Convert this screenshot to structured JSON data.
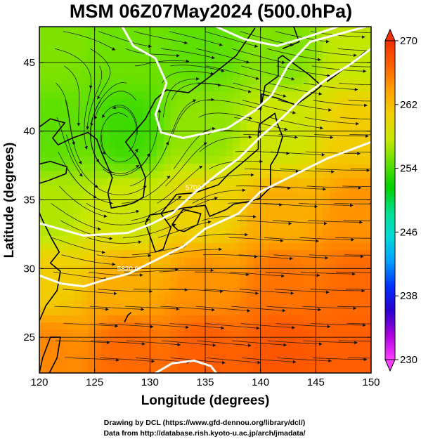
{
  "figure": {
    "title": "MSM 06Z07May2024 (500.0hPa)",
    "credit_line1": "Drawing by DCL (https://www.gfd-dennou.org/library/dcl/)",
    "credit_line2": "Data from http://database.rish.kyoto-u.ac.jp/arch/jmadata/"
  },
  "chart_data": {
    "type": "heatmap",
    "title": "MSM 06Z07May2024 (500.0hPa)",
    "xlabel": "Longitude (degrees)",
    "ylabel": "Latitude  (degrees)",
    "xlim": [
      120,
      150
    ],
    "ylim": [
      22.4,
      47.6
    ],
    "x_ticks": [
      120,
      125,
      130,
      135,
      140,
      145,
      150
    ],
    "y_ticks": [
      25,
      30,
      35,
      40,
      45
    ],
    "grid": true,
    "colorbar": {
      "min": 230,
      "max": 270,
      "ticks": [
        270,
        262,
        254,
        246,
        238,
        230
      ],
      "colors": [
        "#ff40ff",
        "#aa00dd",
        "#2a00cc",
        "#0030ff",
        "#00a0ff",
        "#00d8d8",
        "#00e090",
        "#00d000",
        "#60e000",
        "#c8e800",
        "#f0d000",
        "#ffa000",
        "#ff6000",
        "#f03000"
      ],
      "triangles": "both"
    },
    "field_points": [
      {
        "lon": 121,
        "lat": 46,
        "value": 255.5
      },
      {
        "lon": 128,
        "lat": 46,
        "value": 255
      },
      {
        "lon": 135,
        "lat": 46,
        "value": 254.5
      },
      {
        "lon": 142,
        "lat": 46,
        "value": 255.5
      },
      {
        "lon": 149,
        "lat": 46,
        "value": 257.5
      },
      {
        "lon": 121,
        "lat": 40,
        "value": 254.5
      },
      {
        "lon": 128,
        "lat": 40,
        "value": 253.5
      },
      {
        "lon": 135,
        "lat": 40,
        "value": 256
      },
      {
        "lon": 142,
        "lat": 40,
        "value": 258
      },
      {
        "lon": 149,
        "lat": 40,
        "value": 261
      },
      {
        "lon": 121,
        "lat": 34,
        "value": 257
      },
      {
        "lon": 128,
        "lat": 34,
        "value": 258
      },
      {
        "lon": 135,
        "lat": 34,
        "value": 260.5
      },
      {
        "lon": 142,
        "lat": 34,
        "value": 263
      },
      {
        "lon": 149,
        "lat": 34,
        "value": 264.5
      },
      {
        "lon": 121,
        "lat": 29,
        "value": 261
      },
      {
        "lon": 128,
        "lat": 29,
        "value": 263
      },
      {
        "lon": 135,
        "lat": 29,
        "value": 264.5
      },
      {
        "lon": 142,
        "lat": 29,
        "value": 266
      },
      {
        "lon": 149,
        "lat": 29,
        "value": 266.5
      },
      {
        "lon": 121,
        "lat": 24,
        "value": 265
      },
      {
        "lon": 128,
        "lat": 24,
        "value": 266.5
      },
      {
        "lon": 135,
        "lat": 24,
        "value": 267
      },
      {
        "lon": 142,
        "lat": 24,
        "value": 267.5
      },
      {
        "lon": 149,
        "lat": 24,
        "value": 267
      }
    ],
    "contours": [
      {
        "label": "",
        "points": [
          [
            127.5,
            47.6
          ],
          [
            128.5,
            46.2
          ],
          [
            130.5,
            45.3
          ],
          [
            131.5,
            43.5
          ],
          [
            130.5,
            41.2
          ],
          [
            131.0,
            39.9
          ],
          [
            133.0,
            39.5
          ],
          [
            137.0,
            40.2
          ],
          [
            139.5,
            41.5
          ],
          [
            141.0,
            42.6
          ],
          [
            142.5,
            44.8
          ],
          [
            144.5,
            46.5
          ],
          [
            149.5,
            47.6
          ]
        ]
      },
      {
        "label": "",
        "points": [
          [
            136.0,
            47.6
          ],
          [
            138.5,
            46.7
          ],
          [
            141.5,
            46.2
          ],
          [
            144.0,
            46.8
          ],
          [
            147.0,
            47.6
          ]
        ]
      },
      {
        "label": "5700.",
        "points": [
          [
            120.0,
            33.3
          ],
          [
            124.0,
            32.4
          ],
          [
            128.0,
            32.6
          ],
          [
            130.0,
            33.2
          ],
          [
            132.0,
            34.0
          ],
          [
            134.0,
            35.5
          ],
          [
            136.0,
            36.8
          ],
          [
            138.0,
            38.0
          ],
          [
            140.0,
            39.6
          ],
          [
            142.0,
            41.0
          ],
          [
            144.0,
            42.6
          ],
          [
            146.0,
            43.8
          ],
          [
            148.0,
            44.8
          ],
          [
            150.0,
            46.0
          ]
        ]
      },
      {
        "label": "5820.0",
        "points": [
          [
            120.0,
            29.5
          ],
          [
            122.0,
            28.9
          ],
          [
            124.0,
            28.7
          ],
          [
            126.0,
            29.2
          ],
          [
            128.0,
            29.6
          ],
          [
            130.0,
            30.4
          ],
          [
            133.0,
            31.6
          ],
          [
            135.0,
            32.9
          ],
          [
            138.0,
            34.0
          ],
          [
            140.0,
            35.6
          ],
          [
            143.0,
            36.8
          ],
          [
            146.0,
            38.0
          ],
          [
            150.0,
            39.2
          ]
        ]
      },
      {
        "label": "",
        "points": [
          [
            130.5,
            22.4
          ],
          [
            132.0,
            23.1
          ],
          [
            134.0,
            23.3
          ],
          [
            135.5,
            22.9
          ],
          [
            136.0,
            22.4
          ]
        ]
      }
    ],
    "coastline_outline": [
      [
        [
          129.4,
          35.2
        ],
        [
          128.6,
          34.8
        ],
        [
          127.8,
          34.6
        ],
        [
          126.5,
          34.4
        ],
        [
          126.2,
          35.5
        ],
        [
          126.6,
          36.6
        ],
        [
          126.2,
          37.4
        ],
        [
          125.6,
          38.5
        ],
        [
          125.2,
          39.4
        ],
        [
          124.4,
          39.9
        ],
        [
          123.0,
          39.5
        ],
        [
          121.7,
          39.0
        ],
        [
          121.2,
          39.5
        ],
        [
          122.3,
          40.6
        ],
        [
          121.0,
          40.9
        ],
        [
          120.0,
          40.3
        ]
      ],
      [
        [
          129.4,
          35.2
        ],
        [
          129.6,
          36.6
        ],
        [
          128.9,
          38.0
        ],
        [
          127.8,
          39.2
        ],
        [
          129.6,
          40.9
        ],
        [
          130.5,
          42.3
        ],
        [
          131.5,
          43.0
        ],
        [
          133.5,
          42.8
        ],
        [
          135.8,
          44.2
        ],
        [
          137.8,
          45.5
        ],
        [
          139.5,
          47.5
        ]
      ],
      [
        [
          129.6,
          33.3
        ],
        [
          130.5,
          31.2
        ],
        [
          131.2,
          31.4
        ],
        [
          131.9,
          33.0
        ],
        [
          131.0,
          34.0
        ],
        [
          130.0,
          33.9
        ],
        [
          129.6,
          33.3
        ]
      ],
      [
        [
          131.0,
          34.0
        ],
        [
          133.0,
          34.4
        ],
        [
          135.0,
          34.6
        ],
        [
          135.4,
          33.8
        ],
        [
          136.9,
          34.3
        ],
        [
          137.6,
          34.7
        ],
        [
          139.1,
          34.9
        ],
        [
          139.9,
          35.1
        ],
        [
          140.9,
          35.9
        ],
        [
          140.9,
          37.5
        ],
        [
          141.5,
          38.3
        ],
        [
          142.0,
          39.6
        ],
        [
          141.5,
          40.6
        ],
        [
          141.3,
          41.3
        ],
        [
          139.9,
          40.5
        ],
        [
          139.8,
          39.8
        ],
        [
          139.8,
          38.7
        ],
        [
          138.5,
          37.8
        ],
        [
          137.0,
          36.8
        ],
        [
          136.2,
          36.1
        ],
        [
          134.0,
          35.5
        ],
        [
          132.4,
          35.4
        ],
        [
          131.0,
          34.0
        ]
      ],
      [
        [
          132.0,
          33.2
        ],
        [
          132.5,
          32.8
        ],
        [
          133.1,
          32.7
        ],
        [
          134.3,
          33.2
        ],
        [
          134.6,
          34.0
        ],
        [
          133.0,
          34.3
        ],
        [
          132.0,
          33.2
        ]
      ],
      [
        [
          140.0,
          41.5
        ],
        [
          140.1,
          42.7
        ],
        [
          141.5,
          42.4
        ],
        [
          143.2,
          41.9
        ],
        [
          144.9,
          42.9
        ],
        [
          145.5,
          43.3
        ],
        [
          144.4,
          44.1
        ],
        [
          142.0,
          45.5
        ],
        [
          141.6,
          45.3
        ],
        [
          141.6,
          44.0
        ],
        [
          140.4,
          43.3
        ],
        [
          140.0,
          41.5
        ]
      ],
      [
        [
          142.0,
          46.0
        ],
        [
          143.5,
          46.5
        ],
        [
          143.0,
          47.6
        ]
      ],
      [
        [
          146.0,
          43.6
        ],
        [
          148.0,
          44.8
        ],
        [
          149.5,
          45.8
        ]
      ],
      [
        [
          120.0,
          22.4
        ],
        [
          120.3,
          23.5
        ],
        [
          121.0,
          25.0
        ],
        [
          121.9,
          25.0
        ],
        [
          121.6,
          23.5
        ],
        [
          120.9,
          22.4
        ]
      ],
      [
        [
          120.0,
          26.2
        ],
        [
          120.6,
          27.3
        ],
        [
          121.6,
          28.4
        ],
        [
          121.9,
          29.8
        ],
        [
          121.0,
          30.4
        ],
        [
          121.8,
          31.2
        ],
        [
          121.1,
          32.2
        ],
        [
          120.3,
          33.5
        ],
        [
          119.8,
          34.4
        ],
        [
          120.0,
          34.7
        ],
        [
          120.0,
          35.2
        ]
      ],
      [
        [
          120.0,
          36.2
        ],
        [
          120.8,
          36.4
        ],
        [
          122.4,
          36.9
        ],
        [
          122.5,
          37.4
        ],
        [
          121.0,
          37.8
        ],
        [
          120.0,
          37.6
        ]
      ],
      [
        [
          127.7,
          26.1
        ],
        [
          128.0,
          26.6
        ],
        [
          128.3,
          26.8
        ]
      ]
    ]
  }
}
